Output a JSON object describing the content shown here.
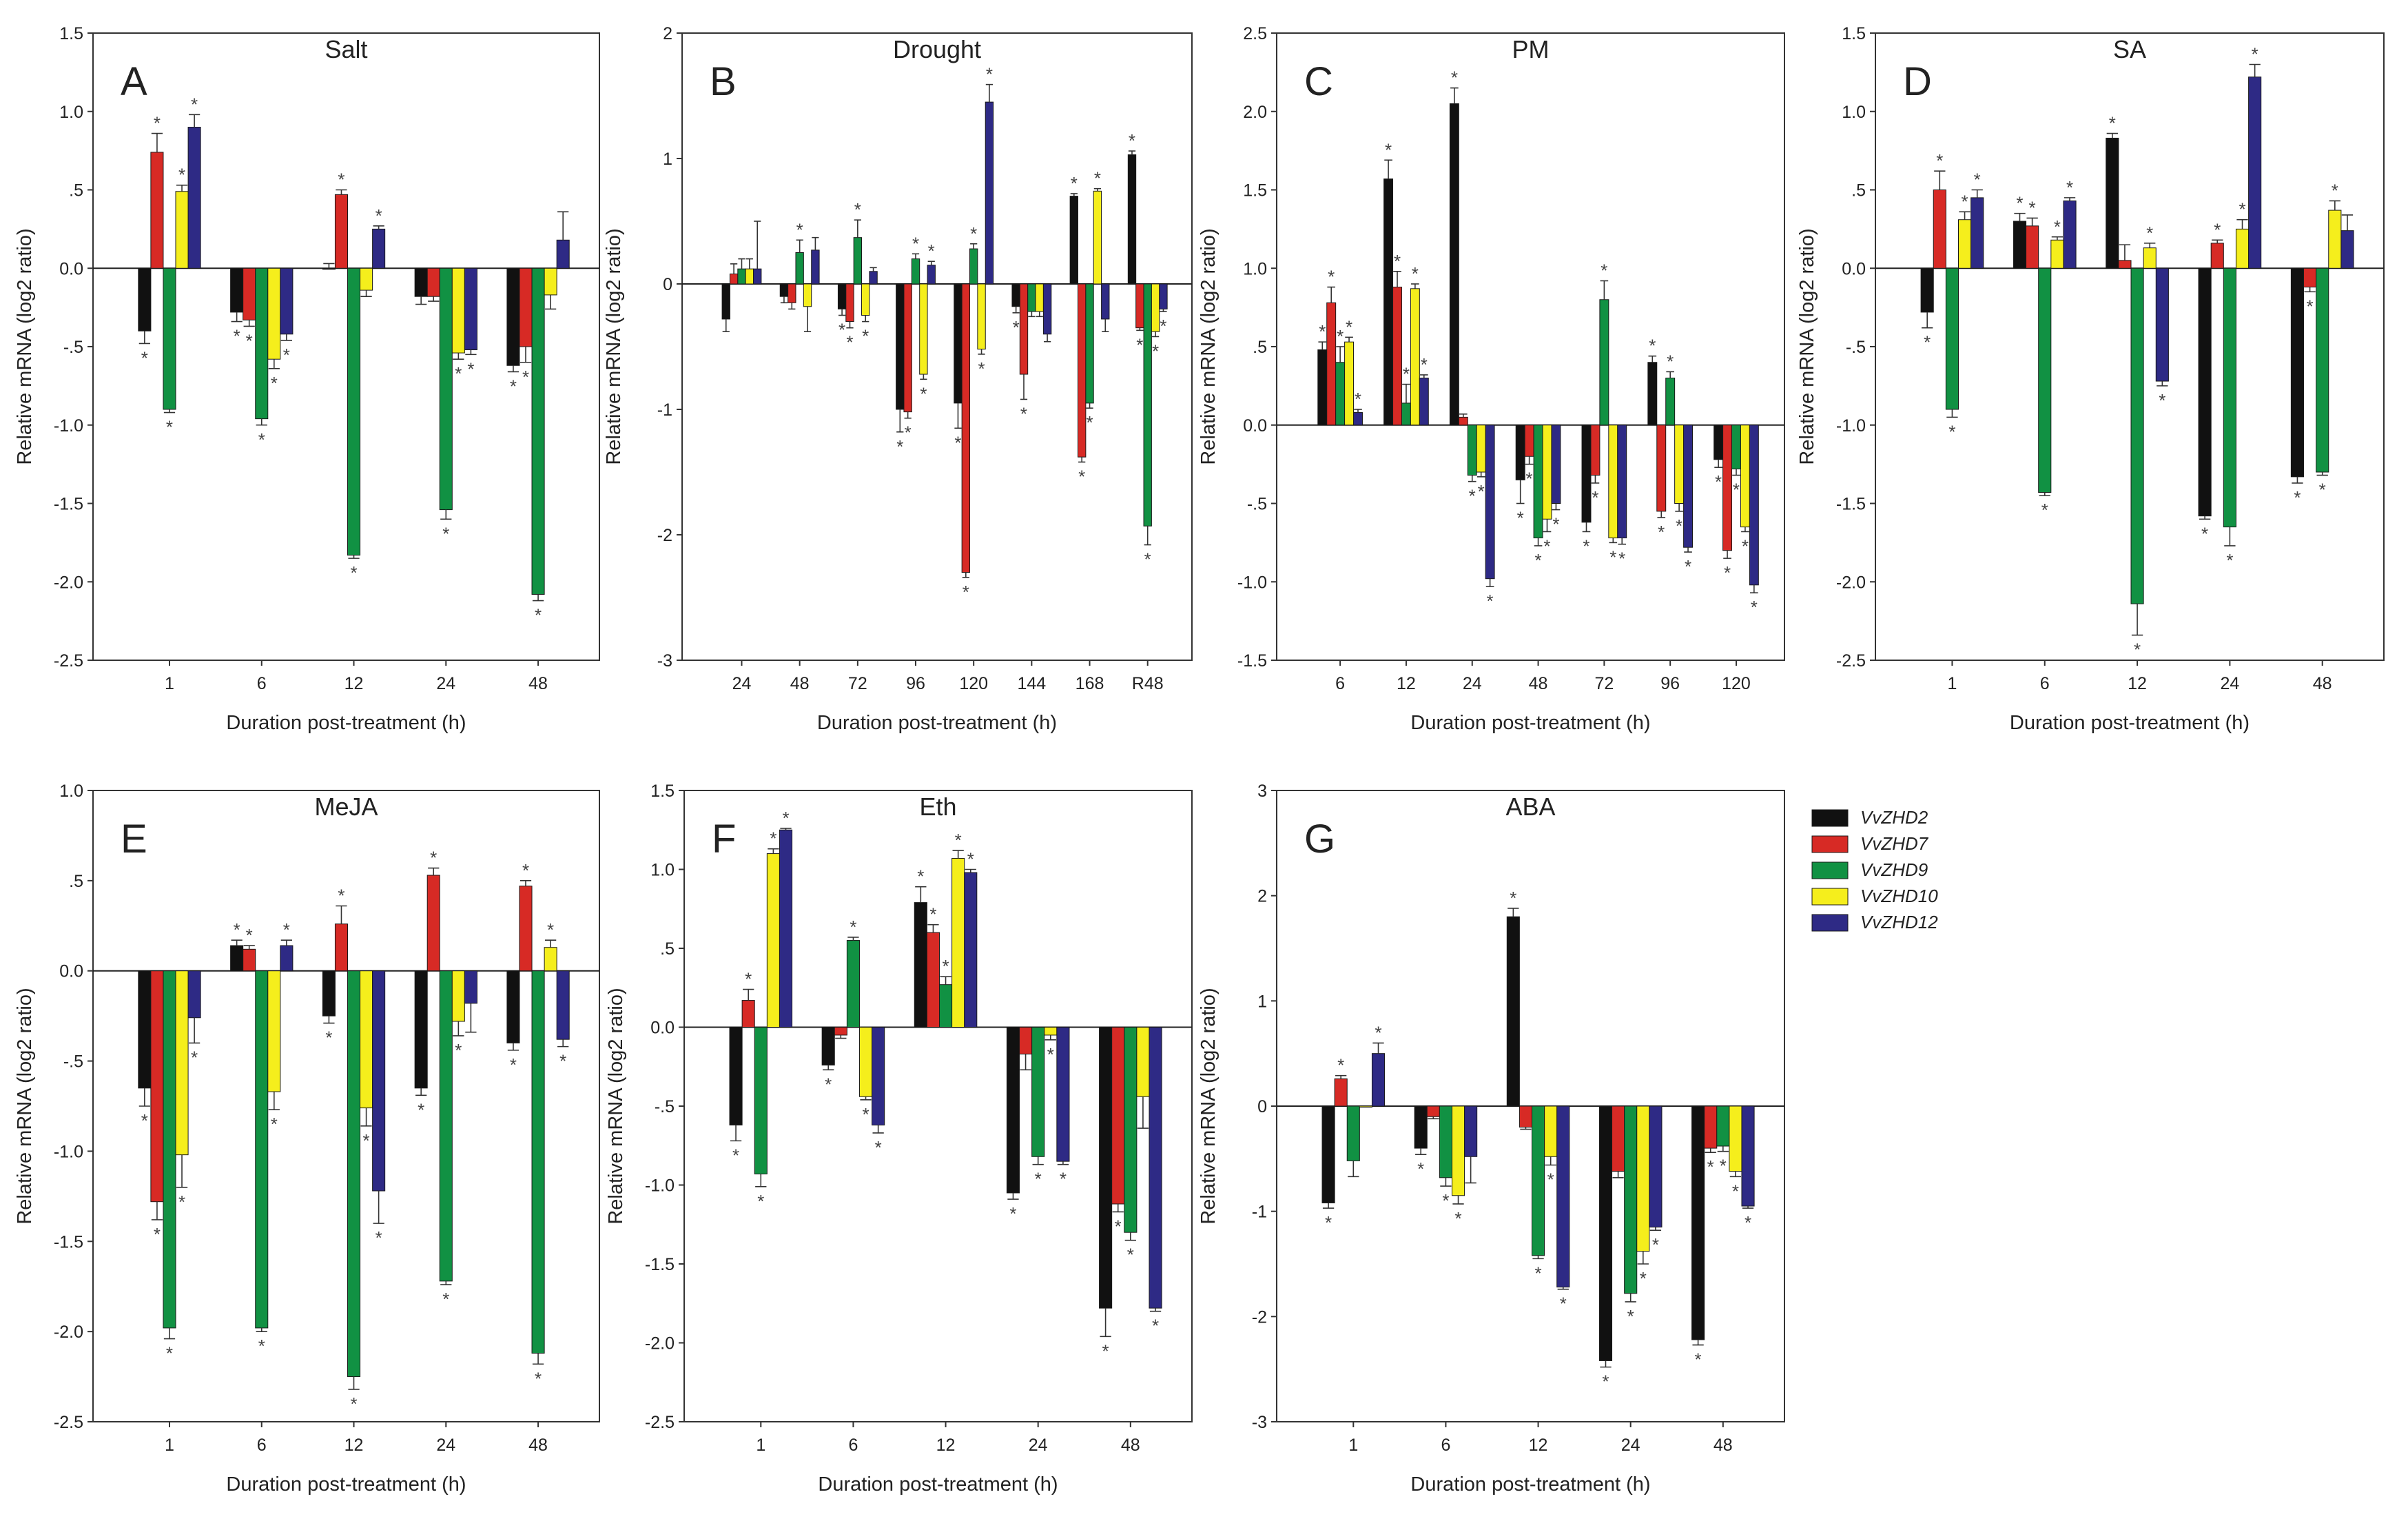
{
  "figure": {
    "ylabel": "Relative mRNA (log2 ratio)",
    "xlabel": "Duration post-treatment (h)",
    "significance_marker": "*"
  },
  "legend": {
    "entries": [
      "VvZHD2",
      "VvZHD7",
      "VvZHD9",
      "VvZHD10",
      "VvZHD12"
    ],
    "colors": [
      "#111111",
      "#d72a25",
      "#119143",
      "#f5ee1c",
      "#2e2a85"
    ]
  },
  "chart_data": [
    {
      "type": "bar",
      "letter": "A",
      "title": "Salt",
      "ylim": [
        -2.5,
        1.5
      ],
      "yticks": [
        "-2.5",
        "-2.0",
        "-1.5",
        "-1.0",
        "-.5",
        "0.0",
        ".5",
        "1.0",
        "1.5"
      ],
      "categories": [
        "1",
        "6",
        "12",
        "24",
        "48"
      ],
      "series": [
        {
          "name": "VvZHD2",
          "values": [
            -0.4,
            -0.28,
            0.0,
            -0.18,
            -0.62
          ],
          "errors": [
            0.08,
            0.06,
            0.03,
            0.05,
            0.04
          ],
          "sig": [
            true,
            true,
            false,
            false,
            true
          ]
        },
        {
          "name": "VvZHD7",
          "values": [
            0.74,
            -0.33,
            0.47,
            -0.18,
            -0.5
          ],
          "errors": [
            0.12,
            0.04,
            0.03,
            0.03,
            0.1
          ],
          "sig": [
            true,
            true,
            true,
            false,
            true
          ]
        },
        {
          "name": "VvZHD9",
          "values": [
            -0.9,
            -0.96,
            -1.83,
            -1.54,
            -2.08
          ],
          "errors": [
            0.02,
            0.04,
            0.02,
            0.06,
            0.04
          ],
          "sig": [
            true,
            true,
            true,
            true,
            true
          ]
        },
        {
          "name": "VvZHD10",
          "values": [
            0.49,
            -0.58,
            -0.14,
            -0.54,
            -0.17
          ],
          "errors": [
            0.04,
            0.06,
            0.04,
            0.04,
            0.09
          ],
          "sig": [
            true,
            true,
            false,
            true,
            false
          ]
        },
        {
          "name": "VvZHD12",
          "values": [
            0.9,
            -0.42,
            0.25,
            -0.52,
            0.18
          ],
          "errors": [
            0.08,
            0.04,
            0.02,
            0.03,
            0.18
          ],
          "sig": [
            true,
            true,
            true,
            true,
            false
          ]
        }
      ]
    },
    {
      "type": "bar",
      "letter": "B",
      "title": "Drought",
      "ylim": [
        -3,
        2
      ],
      "yticks": [
        "-3",
        "-2",
        "-1",
        "0",
        "1",
        "2"
      ],
      "categories": [
        "24",
        "48",
        "72",
        "96",
        "120",
        "144",
        "168",
        "R48"
      ],
      "series": [
        {
          "name": "VvZHD2",
          "values": [
            -0.28,
            -0.1,
            -0.2,
            -1.0,
            -0.95,
            -0.18,
            0.7,
            1.03
          ],
          "errors": [
            0.1,
            0.05,
            0.05,
            0.18,
            0.2,
            0.05,
            0.02,
            0.03
          ],
          "sig": [
            false,
            false,
            true,
            true,
            true,
            true,
            true,
            true
          ]
        },
        {
          "name": "VvZHD7",
          "values": [
            0.08,
            -0.15,
            -0.3,
            -1.02,
            -2.3,
            -0.72,
            -1.38,
            -0.35
          ],
          "errors": [
            0.08,
            0.05,
            0.05,
            0.05,
            0.04,
            0.2,
            0.04,
            0.02
          ],
          "sig": [
            false,
            false,
            true,
            true,
            true,
            true,
            true,
            true
          ]
        },
        {
          "name": "VvZHD9",
          "values": [
            0.12,
            0.25,
            0.37,
            0.2,
            0.28,
            -0.22,
            -0.95,
            -1.93
          ],
          "errors": [
            0.08,
            0.1,
            0.14,
            0.04,
            0.04,
            0.04,
            0.04,
            0.15
          ],
          "sig": [
            false,
            true,
            true,
            true,
            true,
            false,
            true,
            true
          ]
        },
        {
          "name": "VvZHD10",
          "values": [
            0.12,
            -0.18,
            -0.25,
            -0.72,
            -0.52,
            -0.22,
            0.74,
            -0.38
          ],
          "errors": [
            0.08,
            0.2,
            0.05,
            0.04,
            0.04,
            0.04,
            0.02,
            0.04
          ],
          "sig": [
            false,
            false,
            true,
            true,
            true,
            false,
            true,
            true
          ]
        },
        {
          "name": "VvZHD12",
          "values": [
            0.12,
            0.27,
            0.1,
            0.15,
            1.45,
            -0.4,
            -0.28,
            -0.2
          ],
          "errors": [
            0.38,
            0.1,
            0.03,
            0.03,
            0.14,
            0.06,
            0.1,
            0.02
          ],
          "sig": [
            false,
            false,
            false,
            true,
            true,
            false,
            false,
            true
          ]
        }
      ]
    },
    {
      "type": "bar",
      "letter": "C",
      "title": "PM",
      "ylim": [
        -1.5,
        2.5
      ],
      "yticks": [
        "-1.5",
        "-1.0",
        "-.5",
        "0.0",
        ".5",
        "1.0",
        "1.5",
        "2.0",
        "2.5"
      ],
      "categories": [
        "6",
        "12",
        "24",
        "48",
        "72",
        "96",
        "120"
      ],
      "series": [
        {
          "name": "VvZHD2",
          "values": [
            0.48,
            1.57,
            2.05,
            -0.35,
            -0.62,
            0.4,
            -0.22
          ],
          "errors": [
            0.05,
            0.12,
            0.1,
            0.15,
            0.06,
            0.04,
            0.05
          ],
          "sig": [
            true,
            true,
            true,
            true,
            true,
            true,
            true
          ]
        },
        {
          "name": "VvZHD7",
          "values": [
            0.78,
            0.88,
            0.05,
            -0.2,
            -0.32,
            -0.55,
            -0.8
          ],
          "errors": [
            0.1,
            0.1,
            0.02,
            0.05,
            0.05,
            0.04,
            0.05
          ],
          "sig": [
            true,
            true,
            false,
            true,
            true,
            true,
            true
          ]
        },
        {
          "name": "VvZHD9",
          "values": [
            0.4,
            0.14,
            -0.32,
            -0.72,
            0.8,
            0.3,
            -0.28
          ],
          "errors": [
            0.1,
            0.12,
            0.04,
            0.05,
            0.12,
            0.04,
            0.04
          ],
          "sig": [
            true,
            true,
            true,
            true,
            true,
            true,
            true
          ]
        },
        {
          "name": "VvZHD10",
          "values": [
            0.53,
            0.87,
            -0.3,
            -0.6,
            -0.72,
            -0.5,
            -0.65
          ],
          "errors": [
            0.03,
            0.03,
            0.03,
            0.08,
            0.03,
            0.05,
            0.03
          ],
          "sig": [
            true,
            true,
            true,
            true,
            true,
            true,
            true
          ]
        },
        {
          "name": "VvZHD12",
          "values": [
            0.08,
            0.3,
            -0.98,
            -0.5,
            -0.72,
            -0.78,
            -1.02
          ],
          "errors": [
            0.02,
            0.02,
            0.05,
            0.04,
            0.04,
            0.03,
            0.05
          ],
          "sig": [
            true,
            true,
            true,
            true,
            true,
            true,
            true
          ]
        }
      ]
    },
    {
      "type": "bar",
      "letter": "D",
      "title": "SA",
      "ylim": [
        -2.5,
        1.5
      ],
      "yticks": [
        "-2.5",
        "-2.0",
        "-1.5",
        "-1.0",
        "-.5",
        "0.0",
        ".5",
        "1.0",
        "1.5"
      ],
      "categories": [
        "1",
        "6",
        "12",
        "24",
        "48"
      ],
      "series": [
        {
          "name": "VvZHD2",
          "values": [
            -0.28,
            0.3,
            0.83,
            -1.58,
            -1.33
          ],
          "errors": [
            0.1,
            0.05,
            0.03,
            0.02,
            0.04
          ],
          "sig": [
            true,
            true,
            true,
            true,
            true
          ]
        },
        {
          "name": "VvZHD7",
          "values": [
            0.5,
            0.27,
            0.05,
            0.16,
            -0.12
          ],
          "errors": [
            0.12,
            0.05,
            0.1,
            0.02,
            0.03
          ],
          "sig": [
            true,
            true,
            false,
            true,
            true
          ]
        },
        {
          "name": "VvZHD9",
          "values": [
            -0.9,
            -1.43,
            -2.14,
            -1.65,
            -1.3
          ],
          "errors": [
            0.05,
            0.02,
            0.2,
            0.12,
            0.02
          ],
          "sig": [
            true,
            true,
            true,
            true,
            true
          ]
        },
        {
          "name": "VvZHD10",
          "values": [
            0.31,
            0.18,
            0.13,
            0.25,
            0.37
          ],
          "errors": [
            0.05,
            0.02,
            0.03,
            0.06,
            0.06
          ],
          "sig": [
            true,
            true,
            true,
            true,
            true
          ]
        },
        {
          "name": "VvZHD12",
          "values": [
            0.45,
            0.43,
            -0.72,
            1.22,
            0.24
          ],
          "errors": [
            0.05,
            0.02,
            0.03,
            0.08,
            0.1
          ],
          "sig": [
            true,
            true,
            true,
            true,
            false
          ]
        }
      ]
    },
    {
      "type": "bar",
      "letter": "E",
      "title": "MeJA",
      "ylim": [
        -2.5,
        1.0
      ],
      "yticks": [
        "-2.5",
        "-2.0",
        "-1.5",
        "-1.0",
        "-.5",
        "0.0",
        ".5",
        "1.0"
      ],
      "categories": [
        "1",
        "6",
        "12",
        "24",
        "48"
      ],
      "series": [
        {
          "name": "VvZHD2",
          "values": [
            -0.65,
            0.14,
            -0.25,
            -0.65,
            -0.4
          ],
          "errors": [
            0.1,
            0.03,
            0.04,
            0.04,
            0.04
          ],
          "sig": [
            true,
            true,
            true,
            true,
            true
          ]
        },
        {
          "name": "VvZHD7",
          "values": [
            -1.28,
            0.12,
            0.26,
            0.53,
            0.47
          ],
          "errors": [
            0.1,
            0.02,
            0.1,
            0.04,
            0.03
          ],
          "sig": [
            true,
            true,
            true,
            true,
            true
          ]
        },
        {
          "name": "VvZHD9",
          "values": [
            -1.98,
            -1.98,
            -2.25,
            -1.72,
            -2.12
          ],
          "errors": [
            0.06,
            0.02,
            0.07,
            0.02,
            0.06
          ],
          "sig": [
            true,
            true,
            true,
            true,
            true
          ]
        },
        {
          "name": "VvZHD10",
          "values": [
            -1.02,
            -0.67,
            -0.76,
            -0.28,
            0.13
          ],
          "errors": [
            0.18,
            0.1,
            0.1,
            0.08,
            0.04
          ],
          "sig": [
            true,
            true,
            true,
            true,
            true
          ]
        },
        {
          "name": "VvZHD12",
          "values": [
            -0.26,
            0.14,
            -1.22,
            -0.18,
            -0.38
          ],
          "errors": [
            0.14,
            0.03,
            0.18,
            0.16,
            0.04
          ],
          "sig": [
            true,
            true,
            true,
            false,
            true
          ]
        }
      ]
    },
    {
      "type": "bar",
      "letter": "F",
      "title": "Eth",
      "ylim": [
        -2.5,
        1.5
      ],
      "yticks": [
        "-2.5",
        "-2.0",
        "-1.5",
        "-1.0",
        "-.5",
        "0.0",
        ".5",
        "1.0",
        "1.5"
      ],
      "categories": [
        "1",
        "6",
        "12",
        "24",
        "48"
      ],
      "series": [
        {
          "name": "VvZHD2",
          "values": [
            -0.62,
            -0.24,
            0.79,
            -1.05,
            -1.78
          ],
          "errors": [
            0.1,
            0.03,
            0.1,
            0.04,
            0.18
          ],
          "sig": [
            true,
            true,
            true,
            true,
            true
          ]
        },
        {
          "name": "VvZHD7",
          "values": [
            0.17,
            -0.05,
            0.6,
            -0.17,
            -1.12
          ],
          "errors": [
            0.07,
            0.02,
            0.05,
            0.1,
            0.05
          ],
          "sig": [
            true,
            false,
            true,
            false,
            true
          ]
        },
        {
          "name": "VvZHD9",
          "values": [
            -0.93,
            0.55,
            0.27,
            -0.82,
            -1.3
          ],
          "errors": [
            0.08,
            0.02,
            0.05,
            0.05,
            0.05
          ],
          "sig": [
            true,
            true,
            true,
            true,
            true
          ]
        },
        {
          "name": "VvZHD10",
          "values": [
            1.1,
            -0.44,
            1.07,
            -0.05,
            -0.44
          ],
          "errors": [
            0.03,
            0.02,
            0.05,
            0.03,
            0.2
          ],
          "sig": [
            true,
            true,
            true,
            true,
            false
          ]
        },
        {
          "name": "VvZHD12",
          "values": [
            1.25,
            -0.62,
            0.98,
            -0.85,
            -1.78
          ],
          "errors": [
            0.01,
            0.05,
            0.02,
            0.02,
            0.02
          ],
          "sig": [
            true,
            true,
            true,
            true,
            true
          ]
        }
      ]
    },
    {
      "type": "bar",
      "letter": "G",
      "title": "ABA",
      "ylim": [
        -3,
        3
      ],
      "yticks": [
        "-3",
        "-2",
        "-1",
        "0",
        "1",
        "2",
        "3"
      ],
      "categories": [
        "1",
        "6",
        "12",
        "24",
        "48"
      ],
      "series": [
        {
          "name": "VvZHD2",
          "values": [
            -0.92,
            -0.4,
            1.8,
            -2.42,
            -2.22
          ],
          "errors": [
            0.05,
            0.06,
            0.08,
            0.06,
            0.05
          ],
          "sig": [
            true,
            true,
            true,
            true,
            true
          ]
        },
        {
          "name": "VvZHD7",
          "values": [
            0.26,
            -0.1,
            -0.2,
            -0.62,
            -0.4
          ],
          "errors": [
            0.03,
            0.02,
            0.02,
            0.06,
            0.04
          ],
          "sig": [
            true,
            false,
            false,
            false,
            true
          ]
        },
        {
          "name": "VvZHD9",
          "values": [
            -0.52,
            -0.68,
            -1.42,
            -1.78,
            -0.38
          ],
          "errors": [
            0.15,
            0.08,
            0.03,
            0.08,
            0.05
          ],
          "sig": [
            false,
            true,
            true,
            true,
            true
          ]
        },
        {
          "name": "VvZHD10",
          "values": [
            0.0,
            -0.85,
            -0.48,
            -1.38,
            -0.62
          ],
          "errors": [
            0.0,
            0.08,
            0.08,
            0.12,
            0.05
          ],
          "sig": [
            false,
            true,
            true,
            true,
            true
          ]
        },
        {
          "name": "VvZHD12",
          "values": [
            0.5,
            -0.48,
            -1.72,
            -1.15,
            -0.95
          ],
          "errors": [
            0.1,
            0.25,
            0.02,
            0.03,
            0.02
          ],
          "sig": [
            true,
            false,
            true,
            true,
            true
          ]
        }
      ]
    }
  ]
}
